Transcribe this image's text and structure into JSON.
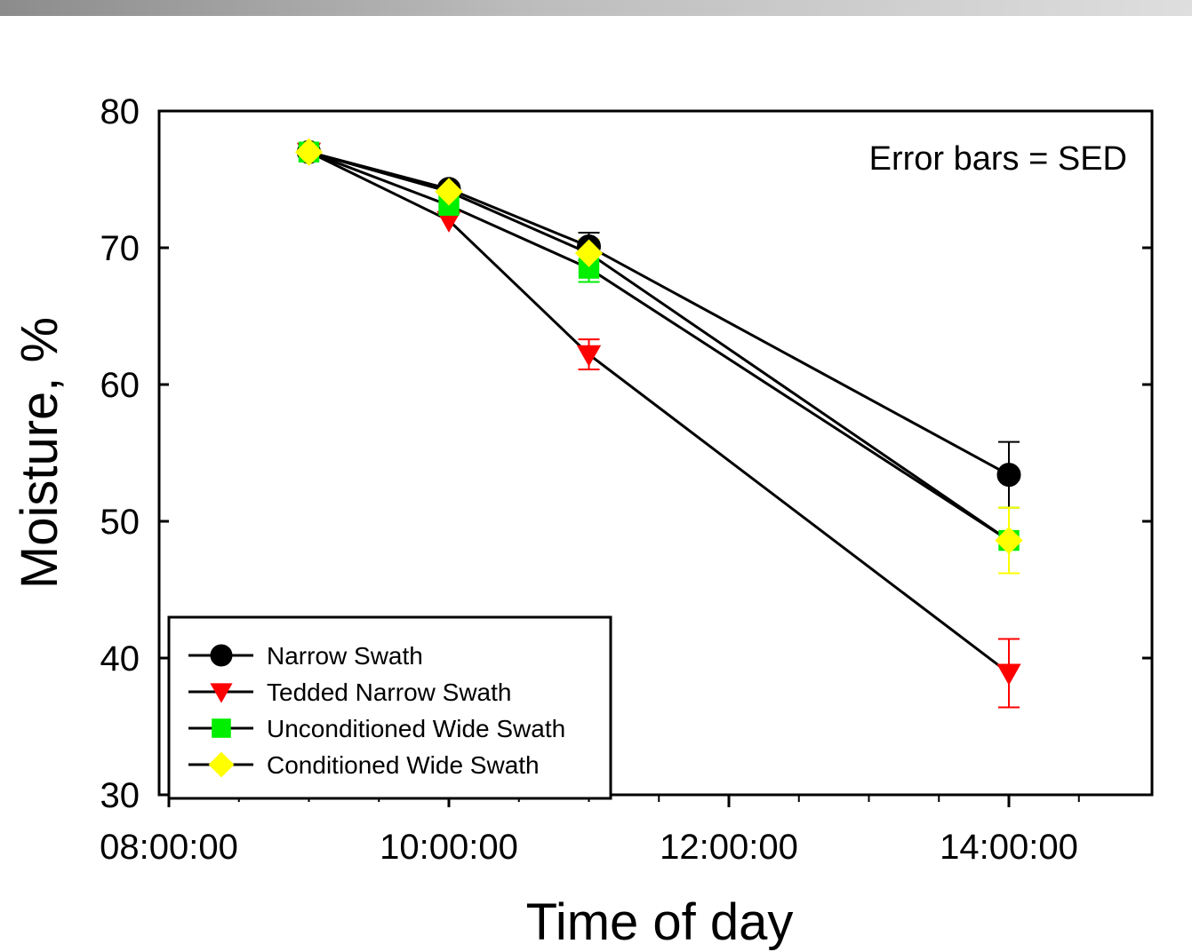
{
  "chart_data": {
    "type": "line",
    "xlabel": "Time of day",
    "ylabel": "Moisture, %",
    "annotation": "Error bars = SED",
    "xlim": [
      "08:00:00",
      "15:00:00"
    ],
    "ylim": [
      30,
      80
    ],
    "x_ticks": [
      "08:00:00",
      "10:00:00",
      "12:00:00",
      "14:00:00"
    ],
    "y_ticks": [
      "30",
      "40",
      "50",
      "60",
      "70",
      "80"
    ],
    "x": [
      "09:00:00",
      "10:00:00",
      "11:00:00",
      "14:00:00"
    ],
    "grid": false,
    "legend_position": "bottom-left",
    "series": [
      {
        "name": "Narrow Swath",
        "marker": "circle",
        "color": "#000000",
        "values": [
          77.0,
          74.3,
          70.1,
          53.4
        ],
        "errors": [
          0.3,
          0.6,
          1.0,
          2.4
        ]
      },
      {
        "name": "Tedded Narrow Swath",
        "marker": "triangle-down",
        "color": "#ff0000",
        "values": [
          77.0,
          72.0,
          62.2,
          38.9
        ],
        "errors": [
          0.3,
          0.5,
          1.1,
          2.5
        ]
      },
      {
        "name": "Unconditioned Wide Swath",
        "marker": "square",
        "color": "#00ee00",
        "values": [
          77.0,
          73.1,
          68.5,
          48.6
        ],
        "errors": [
          0.3,
          0.5,
          1.0,
          2.4
        ]
      },
      {
        "name": "Conditioned Wide Swath",
        "marker": "diamond",
        "color": "#ffff00",
        "values": [
          77.0,
          74.1,
          69.6,
          48.6
        ],
        "errors": [
          0.3,
          0.6,
          1.0,
          2.4
        ]
      }
    ]
  }
}
